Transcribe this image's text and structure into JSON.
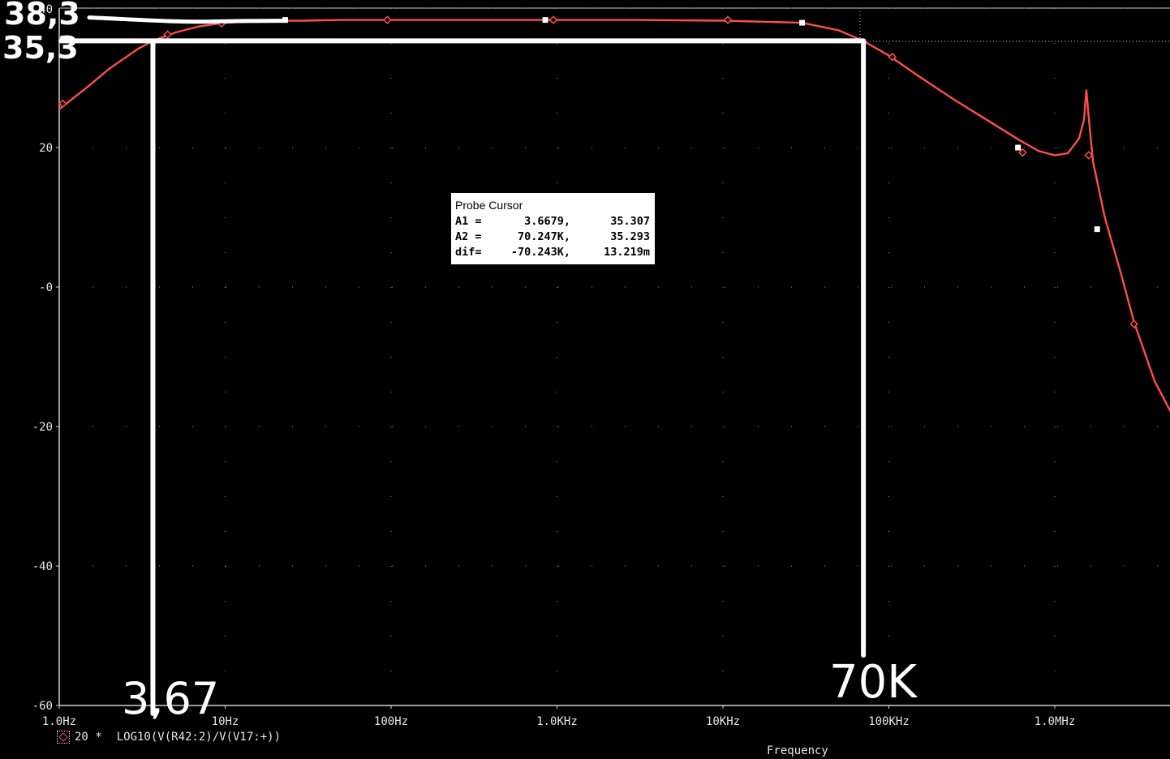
{
  "chart_data": {
    "type": "line",
    "xscale": "log",
    "x_ticks": [
      1,
      10,
      100,
      1000,
      10000,
      100000,
      1000000
    ],
    "x_tick_labels": [
      "1.0Hz",
      "10Hz",
      "100Hz",
      "1.0KHz",
      "10KHz",
      "100KHz",
      "1.0MHz"
    ],
    "xlim": [
      1,
      6000000
    ],
    "y_ticks": [
      20,
      0,
      -20,
      -40,
      -60
    ],
    "y_tick_labels": [
      "20",
      "-0",
      "-20",
      "-40",
      "-60"
    ],
    "y_top_label": "40",
    "ylim": [
      -60,
      40
    ],
    "xlabel": "Frequency",
    "ylabel": "",
    "grid": "dotted",
    "series": [
      {
        "name": "LOG10(V(R42:2)/V(V17:+))",
        "color": "#ff4d4d",
        "x": [
          1,
          1.5,
          2,
          3,
          3.67,
          5,
          7,
          10,
          15,
          20,
          30,
          50,
          100,
          300,
          1000,
          3000,
          10000,
          30000,
          50000,
          70247,
          100000,
          150000,
          250000,
          400000,
          600000,
          800000,
          1000000,
          1200000,
          1400000,
          1500000,
          1550000,
          1600000,
          1700000,
          2000000,
          2500000,
          3000000,
          4000000,
          6000000
        ],
        "y": [
          25.5,
          28.8,
          31.3,
          34.2,
          35.3,
          36.5,
          37.4,
          37.9,
          38.1,
          38.2,
          38.2,
          38.3,
          38.3,
          38.3,
          38.3,
          38.3,
          38.2,
          37.9,
          36.8,
          35.3,
          33.2,
          30.3,
          26.8,
          23.8,
          21.2,
          19.5,
          18.9,
          19.2,
          21.3,
          24.0,
          28.3,
          24.5,
          18.0,
          10.0,
          2.0,
          -5.0,
          -13.5,
          -21.5
        ]
      }
    ],
    "series_markers": [
      {
        "shape": "diamond",
        "x": [
          1.05,
          4.5,
          9.5,
          95,
          950,
          10700,
          105000,
          640000,
          1600000,
          3000000
        ],
        "y": [
          26.3,
          36.2,
          37.8,
          38.3,
          38.3,
          38.3,
          33.0,
          19.3,
          18.9,
          -5.3
        ]
      },
      {
        "shape": "square",
        "x": [
          23,
          850,
          30000,
          600000,
          1800000
        ],
        "y": [
          38.3,
          38.3,
          37.9,
          20.0,
          8.3
        ]
      }
    ],
    "legend": {
      "label": "20 *",
      "position": "bottom-left"
    },
    "probe_cursor": {
      "title": "Probe Cursor",
      "rows": [
        {
          "label": "A1 =",
          "x": "3.6679,",
          "y": "35.307"
        },
        {
          "label": "A2 =",
          "x": "70.247K,",
          "y": "35.293"
        },
        {
          "label": "dif=",
          "x": "-70.243K,",
          "y": "13.219m"
        }
      ]
    },
    "cursor": {
      "x2": 70247,
      "y": 35.3
    },
    "annotations": {
      "left_level_top": "38,3",
      "left_level": "35,3",
      "left_freq": "3,67",
      "right_freq": "70K",
      "marker_level": 38.3,
      "marker_level_to_x": 23,
      "level": 35.3,
      "freq_a": 3.67,
      "freq_b": 70247
    }
  }
}
